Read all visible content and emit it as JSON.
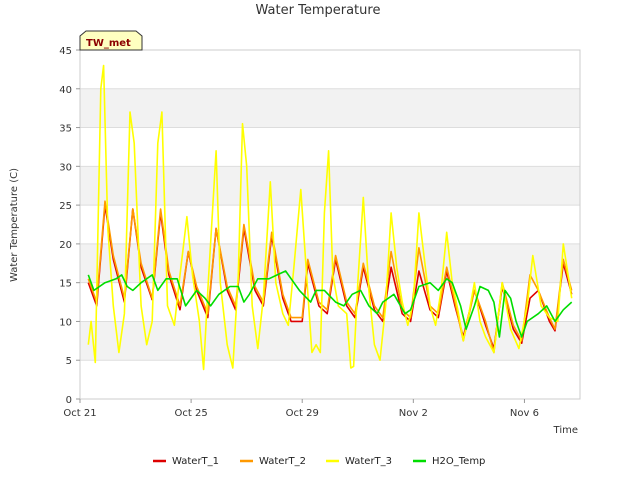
{
  "chart_data": {
    "type": "line",
    "title": "Water Temperature",
    "xlabel": "Time",
    "ylabel": "Water Temperature (C)",
    "ylim": [
      0,
      45
    ],
    "xlim": [
      "2023-10-21",
      "2023-11-08"
    ],
    "yticks": [
      0,
      5,
      10,
      15,
      20,
      25,
      30,
      35,
      40,
      45
    ],
    "xticks": [
      {
        "day": 0,
        "label": "Oct 21"
      },
      {
        "day": 4,
        "label": "Oct 25"
      },
      {
        "day": 8,
        "label": "Oct 29"
      },
      {
        "day": 12,
        "label": "Nov 2"
      },
      {
        "day": 16,
        "label": "Nov 6"
      }
    ],
    "grid": true,
    "alternating_bands": true,
    "legend_position": "bottom",
    "badge": "TW_met",
    "series": [
      {
        "name": "WaterT_1",
        "color": "#dd0000",
        "points": [
          [
            0.3,
            15
          ],
          [
            0.6,
            12
          ],
          [
            0.9,
            25
          ],
          [
            1.2,
            18
          ],
          [
            1.6,
            12.5
          ],
          [
            1.9,
            24.5
          ],
          [
            2.2,
            17
          ],
          [
            2.6,
            12.8
          ],
          [
            2.9,
            24
          ],
          [
            3.2,
            16
          ],
          [
            3.6,
            11.5
          ],
          [
            3.9,
            19
          ],
          [
            4.2,
            14
          ],
          [
            4.6,
            10.5
          ],
          [
            4.9,
            22
          ],
          [
            5.3,
            14
          ],
          [
            5.6,
            11.5
          ],
          [
            5.9,
            22
          ],
          [
            6.3,
            14
          ],
          [
            6.6,
            12
          ],
          [
            6.9,
            21
          ],
          [
            7.3,
            13
          ],
          [
            7.6,
            10
          ],
          [
            8.0,
            10
          ],
          [
            8.2,
            17.5
          ],
          [
            8.6,
            12
          ],
          [
            8.9,
            11
          ],
          [
            9.2,
            18
          ],
          [
            9.6,
            12
          ],
          [
            9.9,
            10.5
          ],
          [
            10.2,
            17
          ],
          [
            10.6,
            11.5
          ],
          [
            10.9,
            10
          ],
          [
            11.2,
            17
          ],
          [
            11.6,
            11
          ],
          [
            11.9,
            10
          ],
          [
            12.2,
            16.5
          ],
          [
            12.6,
            11.5
          ],
          [
            12.9,
            10.5
          ],
          [
            13.2,
            16.5
          ],
          [
            13.5,
            12
          ],
          [
            13.8,
            8
          ],
          [
            14.2,
            14
          ],
          [
            14.6,
            9.5
          ],
          [
            14.9,
            6.5
          ],
          [
            15.2,
            14.5
          ],
          [
            15.6,
            9
          ],
          [
            15.9,
            7.2
          ],
          [
            16.2,
            13
          ],
          [
            16.5,
            14
          ],
          [
            16.9,
            10
          ],
          [
            17.1,
            8.8
          ],
          [
            17.4,
            17.5
          ],
          [
            17.7,
            13.5
          ]
        ]
      },
      {
        "name": "WaterT_2",
        "color": "#ff9900",
        "points": [
          [
            0.3,
            15.5
          ],
          [
            0.6,
            12.5
          ],
          [
            0.9,
            25.5
          ],
          [
            1.2,
            18.5
          ],
          [
            1.6,
            13
          ],
          [
            1.9,
            24.5
          ],
          [
            2.2,
            17.5
          ],
          [
            2.6,
            13
          ],
          [
            2.9,
            24.5
          ],
          [
            3.2,
            16.5
          ],
          [
            3.6,
            12
          ],
          [
            3.9,
            19
          ],
          [
            4.2,
            14.5
          ],
          [
            4.6,
            11
          ],
          [
            4.9,
            22
          ],
          [
            5.3,
            14.5
          ],
          [
            5.6,
            12
          ],
          [
            5.9,
            22.5
          ],
          [
            6.3,
            14.5
          ],
          [
            6.6,
            12.5
          ],
          [
            6.9,
            21.5
          ],
          [
            7.3,
            13.5
          ],
          [
            7.6,
            10.5
          ],
          [
            8.0,
            10.5
          ],
          [
            8.2,
            18
          ],
          [
            8.6,
            12.5
          ],
          [
            8.9,
            11.5
          ],
          [
            9.2,
            18.5
          ],
          [
            9.6,
            12.5
          ],
          [
            9.9,
            11
          ],
          [
            10.2,
            17.5
          ],
          [
            10.6,
            12
          ],
          [
            10.9,
            10.5
          ],
          [
            11.2,
            19
          ],
          [
            11.6,
            11.5
          ],
          [
            11.9,
            10.5
          ],
          [
            12.2,
            19.5
          ],
          [
            12.6,
            12
          ],
          [
            12.9,
            11
          ],
          [
            13.2,
            17
          ],
          [
            13.5,
            12.5
          ],
          [
            13.8,
            7.5
          ],
          [
            14.2,
            14
          ],
          [
            14.6,
            10
          ],
          [
            14.9,
            6
          ],
          [
            15.2,
            15
          ],
          [
            15.6,
            9.5
          ],
          [
            15.9,
            7.5
          ],
          [
            16.2,
            16
          ],
          [
            16.5,
            14
          ],
          [
            16.9,
            10.5
          ],
          [
            17.1,
            9
          ],
          [
            17.4,
            18
          ],
          [
            17.7,
            14
          ]
        ]
      },
      {
        "name": "WaterT_3",
        "color": "#ffff00",
        "points": [
          [
            0.3,
            7
          ],
          [
            0.4,
            10
          ],
          [
            0.55,
            4.7
          ],
          [
            0.75,
            40
          ],
          [
            0.85,
            43
          ],
          [
            1.0,
            22
          ],
          [
            1.2,
            12
          ],
          [
            1.4,
            6
          ],
          [
            1.6,
            11
          ],
          [
            1.8,
            37
          ],
          [
            1.95,
            33
          ],
          [
            2.2,
            12
          ],
          [
            2.4,
            7
          ],
          [
            2.6,
            10
          ],
          [
            2.8,
            33
          ],
          [
            2.95,
            37
          ],
          [
            3.15,
            12
          ],
          [
            3.4,
            9.5
          ],
          [
            3.6,
            16
          ],
          [
            3.85,
            23.5
          ],
          [
            4.05,
            16
          ],
          [
            4.3,
            10
          ],
          [
            4.45,
            3.8
          ],
          [
            4.6,
            14
          ],
          [
            4.9,
            32
          ],
          [
            5.05,
            15
          ],
          [
            5.3,
            7
          ],
          [
            5.5,
            4
          ],
          [
            5.7,
            16
          ],
          [
            5.85,
            35.5
          ],
          [
            6.0,
            30
          ],
          [
            6.2,
            12
          ],
          [
            6.4,
            6.5
          ],
          [
            6.6,
            13
          ],
          [
            6.85,
            28
          ],
          [
            7.05,
            15
          ],
          [
            7.3,
            11
          ],
          [
            7.5,
            9.5
          ],
          [
            7.7,
            17
          ],
          [
            7.95,
            27
          ],
          [
            8.1,
            19
          ],
          [
            8.35,
            6
          ],
          [
            8.5,
            7
          ],
          [
            8.65,
            6
          ],
          [
            8.8,
            24
          ],
          [
            8.95,
            32
          ],
          [
            9.1,
            16
          ],
          [
            9.3,
            12
          ],
          [
            9.6,
            11
          ],
          [
            9.75,
            4
          ],
          [
            9.85,
            4.2
          ],
          [
            10.0,
            15
          ],
          [
            10.2,
            26
          ],
          [
            10.4,
            14
          ],
          [
            10.6,
            7
          ],
          [
            10.8,
            5
          ],
          [
            11.0,
            12
          ],
          [
            11.2,
            24
          ],
          [
            11.4,
            17
          ],
          [
            11.6,
            12.5
          ],
          [
            11.8,
            9.5
          ],
          [
            12.0,
            12.5
          ],
          [
            12.2,
            24
          ],
          [
            12.4,
            18
          ],
          [
            12.6,
            12
          ],
          [
            12.8,
            9.5
          ],
          [
            13.0,
            14
          ],
          [
            13.2,
            21.5
          ],
          [
            13.4,
            15
          ],
          [
            13.6,
            11.5
          ],
          [
            13.8,
            7.5
          ],
          [
            14.0,
            11
          ],
          [
            14.2,
            15
          ],
          [
            14.4,
            10
          ],
          [
            14.6,
            8
          ],
          [
            14.9,
            6
          ],
          [
            15.2,
            15
          ],
          [
            15.5,
            9
          ],
          [
            15.8,
            6.5
          ],
          [
            16.1,
            12
          ],
          [
            16.3,
            18.5
          ],
          [
            16.6,
            12
          ],
          [
            16.9,
            10.5
          ],
          [
            17.2,
            10
          ],
          [
            17.4,
            20
          ],
          [
            17.7,
            13
          ]
        ]
      },
      {
        "name": "H2O_Temp",
        "color": "#00dd00",
        "points": [
          [
            0.3,
            16
          ],
          [
            0.5,
            14
          ],
          [
            0.9,
            15
          ],
          [
            1.3,
            15.5
          ],
          [
            1.5,
            16
          ],
          [
            1.7,
            14.5
          ],
          [
            1.9,
            14
          ],
          [
            2.2,
            15
          ],
          [
            2.6,
            16
          ],
          [
            2.8,
            14
          ],
          [
            3.1,
            15.5
          ],
          [
            3.5,
            15.5
          ],
          [
            3.8,
            12
          ],
          [
            4.2,
            14
          ],
          [
            4.5,
            13
          ],
          [
            4.7,
            12
          ],
          [
            5.0,
            13.5
          ],
          [
            5.4,
            14.5
          ],
          [
            5.7,
            14.5
          ],
          [
            5.9,
            12.5
          ],
          [
            6.1,
            13.5
          ],
          [
            6.4,
            15.5
          ],
          [
            6.8,
            15.5
          ],
          [
            7.1,
            16
          ],
          [
            7.4,
            16.5
          ],
          [
            7.7,
            15
          ],
          [
            7.9,
            14
          ],
          [
            8.3,
            12.5
          ],
          [
            8.5,
            14
          ],
          [
            8.8,
            14
          ],
          [
            9.2,
            12.5
          ],
          [
            9.5,
            12
          ],
          [
            9.8,
            13.5
          ],
          [
            10.1,
            14
          ],
          [
            10.4,
            12
          ],
          [
            10.7,
            11
          ],
          [
            10.9,
            12.5
          ],
          [
            11.3,
            13.5
          ],
          [
            11.7,
            11
          ],
          [
            11.9,
            11.5
          ],
          [
            12.2,
            14.5
          ],
          [
            12.6,
            15
          ],
          [
            12.9,
            14
          ],
          [
            13.2,
            15.5
          ],
          [
            13.4,
            15
          ],
          [
            13.7,
            12
          ],
          [
            13.9,
            9
          ],
          [
            14.2,
            12
          ],
          [
            14.4,
            14.5
          ],
          [
            14.7,
            14
          ],
          [
            14.9,
            12.5
          ],
          [
            15.1,
            8
          ],
          [
            15.3,
            14
          ],
          [
            15.5,
            13
          ],
          [
            15.7,
            10
          ],
          [
            15.9,
            8
          ],
          [
            16.1,
            10
          ],
          [
            16.5,
            11
          ],
          [
            16.8,
            12
          ],
          [
            17.1,
            10
          ],
          [
            17.4,
            11.5
          ],
          [
            17.7,
            12.5
          ]
        ]
      }
    ]
  }
}
